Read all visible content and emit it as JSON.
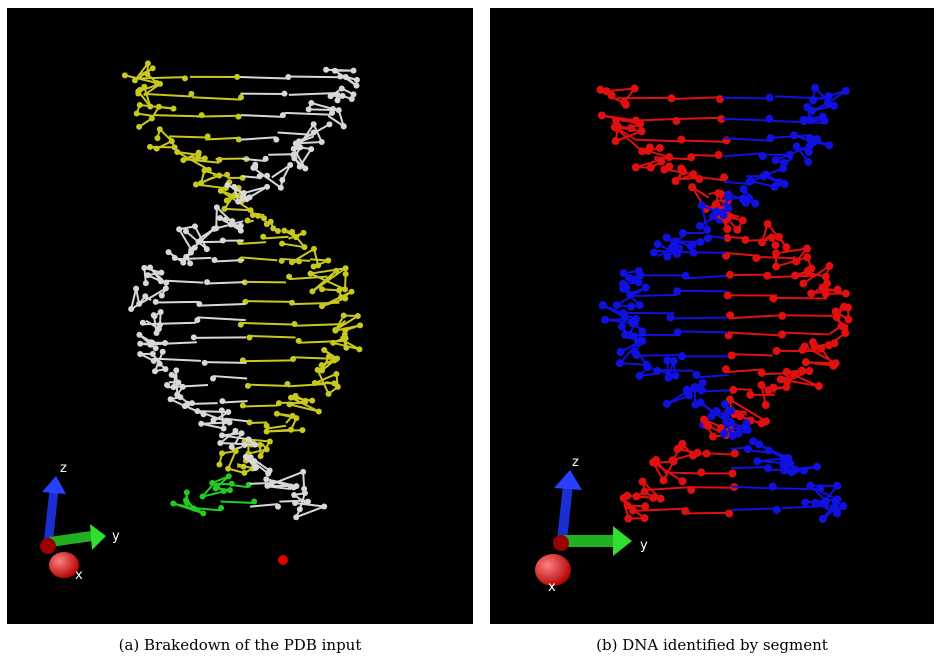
{
  "panels": [
    {
      "caption": "(a) Brakedown of the PDB input",
      "axes": {
        "z": "z",
        "y": "y",
        "x": "x"
      }
    },
    {
      "caption": "(b) DNA identified by segment",
      "axes": {
        "z": "z",
        "y": "y",
        "x": "x"
      }
    }
  ]
}
